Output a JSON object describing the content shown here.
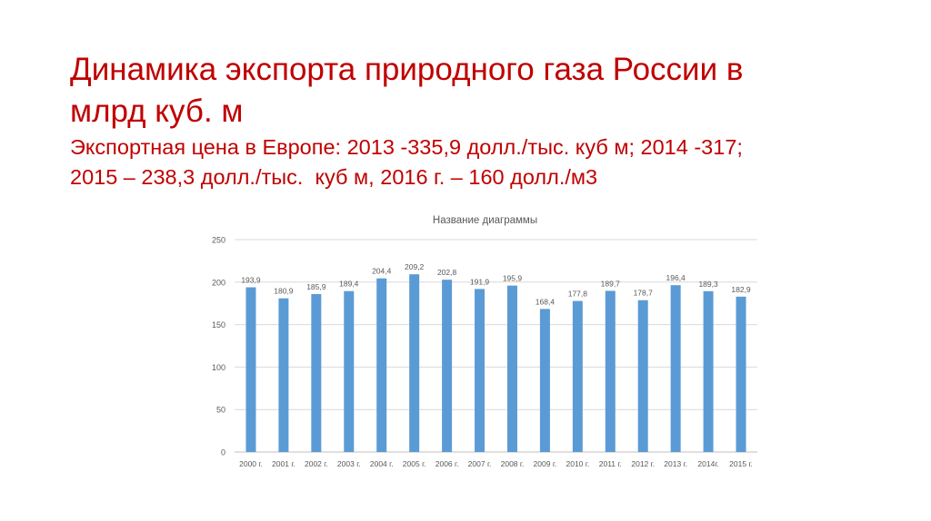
{
  "slide": {
    "title_line1": "Динамика экспорта природного газа России в",
    "title_line2": "млрд куб. м",
    "subtitle_line1": "Экспортная цена в Европе: 2013 -335,9 долл./тыс. куб м; 2014 -317;",
    "subtitle_line2": "2015 – 238,3 долл./тыс.  куб м, 2016 г. – 160 долл./м3"
  },
  "colors": {
    "title": "#c00000",
    "bar": "#5b9bd5",
    "grid": "#d9d9d9",
    "text": "#595959"
  },
  "chart_data": {
    "type": "bar",
    "title": "Название диаграммы",
    "categories": [
      "2000 г.",
      "2001 г.",
      "2002 г.",
      "2003 г.",
      "2004 г.",
      "2005 г.",
      "2006 г.",
      "2007 г.",
      "2008 г.",
      "2009 г.",
      "2010 г.",
      "2011 г.",
      "2012 г.",
      "2013 г.",
      "2014г.",
      "2015 г."
    ],
    "values": [
      193.9,
      180.9,
      185.9,
      189.4,
      204.4,
      209.2,
      202.8,
      191.9,
      195.9,
      168.4,
      177.8,
      189.7,
      178.7,
      196.4,
      189.3,
      182.9
    ],
    "value_labels": [
      "193,9",
      "180,9",
      "185,9",
      "189,4",
      "204,4",
      "209,2",
      "202,8",
      "191,9",
      "195,9",
      "168,4",
      "177,8",
      "189,7",
      "178,7",
      "196,4",
      "189,3",
      "182,9"
    ],
    "yticks": [
      0,
      50,
      100,
      150,
      200,
      250
    ],
    "ylim": [
      0,
      250
    ],
    "grid": true,
    "legend": "none"
  }
}
